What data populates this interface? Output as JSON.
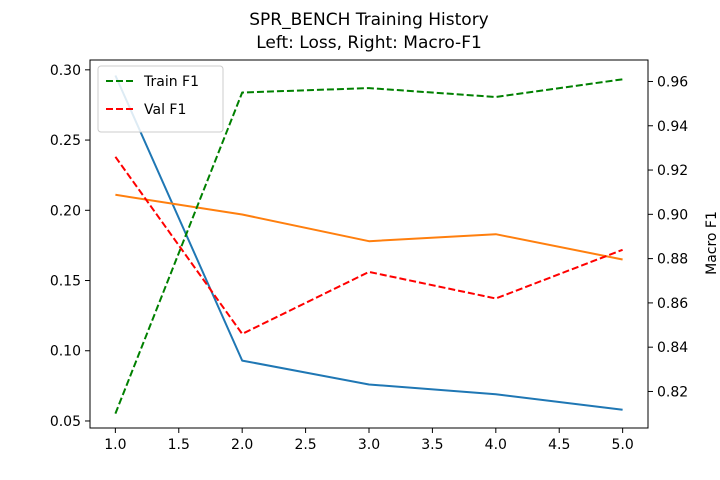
{
  "chart_data": {
    "type": "line",
    "title": "SPR_BENCH Training History",
    "subtitle": "Left: Loss, Right: Macro-F1",
    "xlabel": "",
    "ylabel_left": "",
    "ylabel_right": "Macro F1",
    "x": [
      1,
      2,
      3,
      4,
      5
    ],
    "xlim": [
      0.8,
      5.2
    ],
    "ylim_left": [
      0.045,
      0.307
    ],
    "ylim_right": [
      0.8035,
      0.9697
    ],
    "x_ticks": [
      "1.0",
      "1.5",
      "2.0",
      "2.5",
      "3.0",
      "3.5",
      "4.0",
      "4.5",
      "5.0"
    ],
    "y_ticks_left": [
      "0.05",
      "0.10",
      "0.15",
      "0.20",
      "0.25",
      "0.30"
    ],
    "y_ticks_right": [
      "0.82",
      "0.84",
      "0.86",
      "0.88",
      "0.90",
      "0.92",
      "0.94",
      "0.96"
    ],
    "grid": false,
    "legend_position": "top-left",
    "series": [
      {
        "axis": "left",
        "color": "#1f77b4",
        "dashed": false,
        "values": [
          0.296,
          0.093,
          0.076,
          0.069,
          0.058
        ]
      },
      {
        "axis": "left",
        "color": "#ff7f0e",
        "dashed": false,
        "values": [
          0.211,
          0.197,
          0.178,
          0.183,
          0.165
        ]
      },
      {
        "name": "Train F1",
        "axis": "right",
        "color": "#008000",
        "dashed": true,
        "values": [
          0.81,
          0.955,
          0.957,
          0.953,
          0.961
        ]
      },
      {
        "name": "Val F1",
        "axis": "right",
        "color": "#ff0000",
        "dashed": true,
        "values": [
          0.926,
          0.846,
          0.874,
          0.862,
          0.884
        ]
      }
    ]
  }
}
